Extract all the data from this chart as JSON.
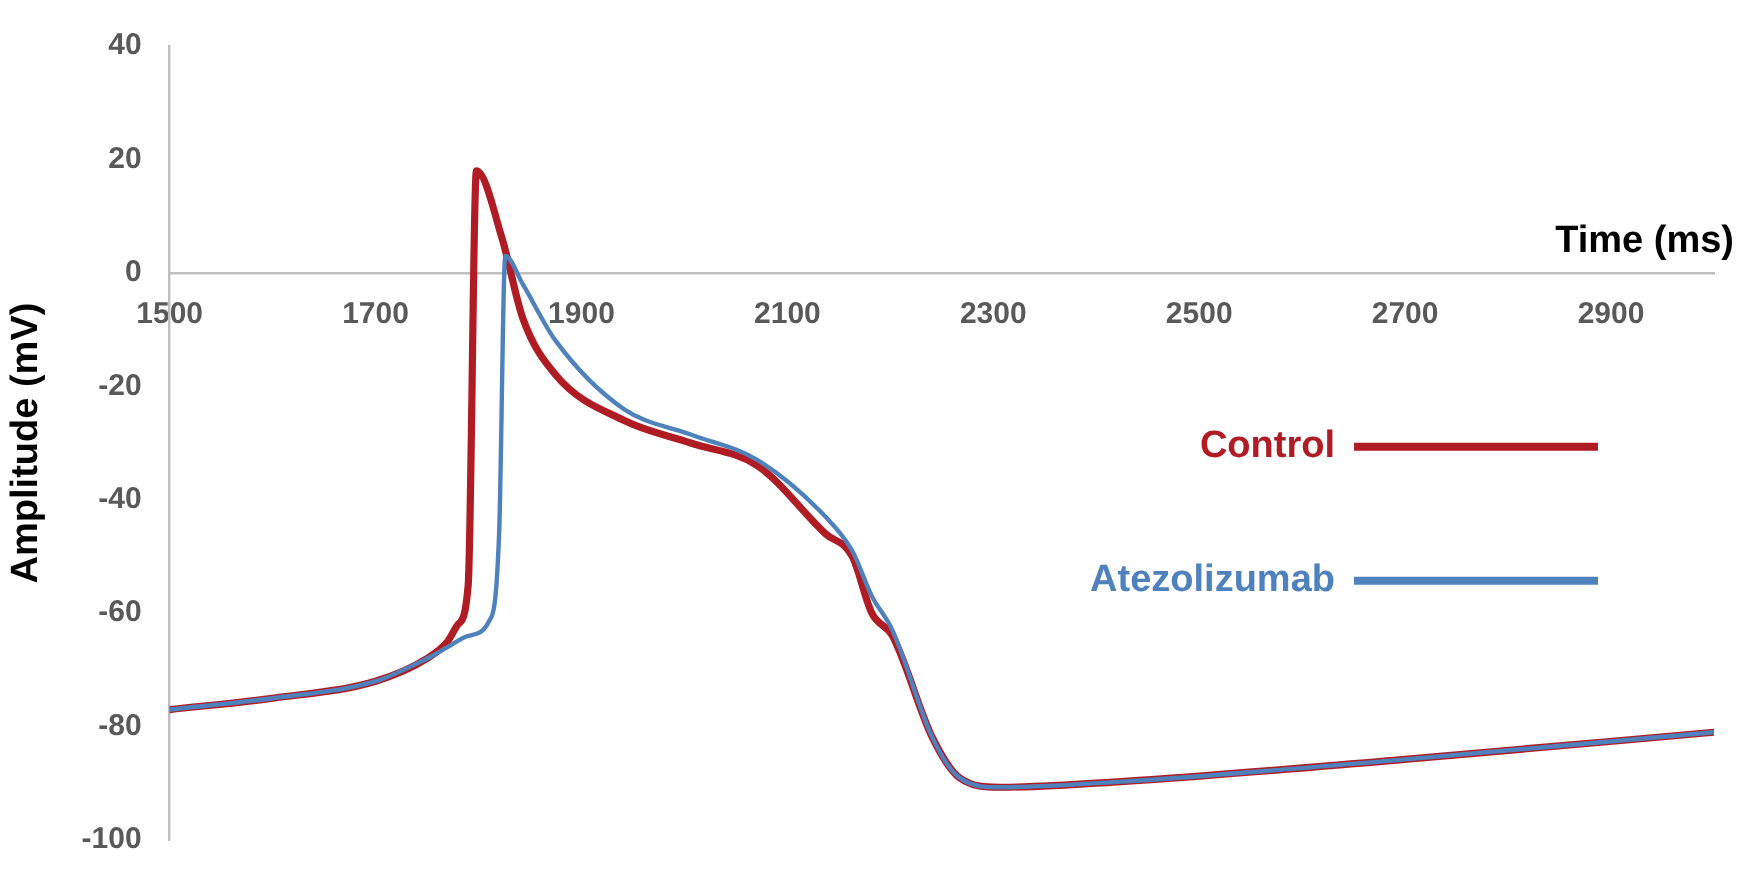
{
  "chart_data": {
    "type": "line",
    "xlabel": "Time (ms)",
    "ylabel": "Amplitude (mV)",
    "xlim": [
      1500,
      3000
    ],
    "xticks": [
      1500,
      1700,
      1900,
      2100,
      2300,
      2500,
      2700,
      2900
    ],
    "ylim": [
      -100,
      40
    ],
    "yticks": [
      -100,
      -80,
      -60,
      -40,
      -20,
      0,
      20,
      40
    ],
    "grid": false,
    "legend": "right",
    "marker": "none",
    "line_style": "solid",
    "series": [
      {
        "name": "Control",
        "color": "#b01c24",
        "x": [
          1500,
          1600,
          1700,
          1750,
          1770,
          1780,
          1790,
          1798,
          1823,
          1843,
          1875,
          1941,
          2006,
          2071,
          2137,
          2163,
          2182,
          2202,
          2241,
          2267,
          2306,
          2424,
          2686,
          3000
        ],
        "values": [
          -77,
          -75,
          -72,
          -68,
          -65,
          -62,
          -55,
          18,
          6,
          -8,
          -18,
          -26,
          -30,
          -34,
          -46,
          -50,
          -60,
          -64,
          -82,
          -89,
          -90.7,
          -89.7,
          -86,
          -81
        ]
      },
      {
        "name": "Atezolizumab",
        "color": "#4f81bd",
        "x": [
          1500,
          1600,
          1700,
          1750,
          1770,
          1790,
          1810,
          1820,
          1826,
          1843,
          1875,
          1941,
          2006,
          2071,
          2137,
          2163,
          2182,
          2202,
          2241,
          2267,
          2306,
          2424,
          2686,
          3000
        ],
        "values": [
          -77,
          -75,
          -72,
          -68,
          -66,
          -64,
          -61.5,
          -46,
          3,
          -2,
          -12,
          -24,
          -28.5,
          -33,
          -43,
          -49,
          -57,
          -63,
          -82,
          -89,
          -90.7,
          -89.7,
          -86,
          -81
        ]
      }
    ]
  }
}
